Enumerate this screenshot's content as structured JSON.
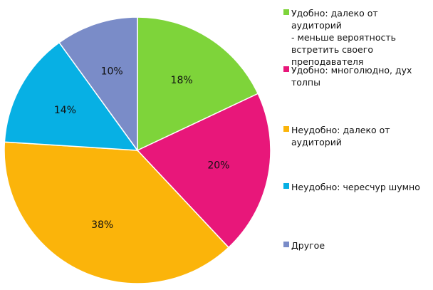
{
  "chart_data": {
    "type": "pie",
    "title": "",
    "start_angle_deg": 0,
    "direction": "clockwise",
    "slices": [
      {
        "label": "Удобно: далеко от аудиторий\n- меньше вероятность\nвстретить своего\nпреподавателя",
        "value": 18,
        "value_label": "18%",
        "color": "#7ed43a"
      },
      {
        "label": "Удобно: многолюдно, дух\nтолпы",
        "value": 20,
        "value_label": "20%",
        "color": "#e8177a"
      },
      {
        "label": "Неудобно: далеко от\nаудиторий",
        "value": 38,
        "value_label": "38%",
        "color": "#fbb40a"
      },
      {
        "label": "Неудобно: чересчур шумно",
        "value": 14,
        "value_label": "14%",
        "color": "#07b0e4"
      },
      {
        "label": "Другое",
        "value": 10,
        "value_label": "10%",
        "color": "#7a8cc8"
      }
    ],
    "legend_position": "right"
  }
}
